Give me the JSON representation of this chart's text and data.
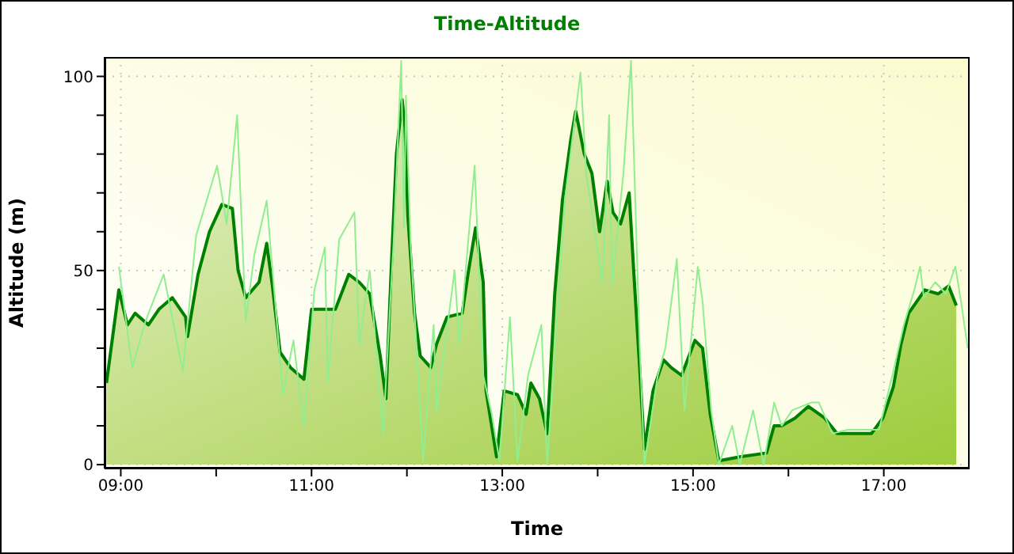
{
  "chart_data": {
    "type": "area",
    "title": "Time-Altitude",
    "xlabel": "Time",
    "ylabel": "Altitude (m)",
    "xlim": [
      8.83,
      17.9
    ],
    "ylim": [
      -1,
      105
    ],
    "xticks": [
      {
        "value": 9,
        "label": "09:00"
      },
      {
        "value": 10,
        "label": null
      },
      {
        "value": 11,
        "label": "11:00"
      },
      {
        "value": 12,
        "label": null
      },
      {
        "value": 13,
        "label": "13:00"
      },
      {
        "value": 14,
        "label": null
      },
      {
        "value": 15,
        "label": "15:00"
      },
      {
        "value": 16,
        "label": null
      },
      {
        "value": 17,
        "label": "17:00"
      }
    ],
    "yticks": [
      0,
      {
        "value": 10,
        "label": null
      },
      {
        "value": 20,
        "label": null
      },
      {
        "value": 30,
        "label": null
      },
      {
        "value": 40,
        "label": null
      },
      50,
      {
        "value": 60,
        "label": null
      },
      {
        "value": 70,
        "label": null
      },
      {
        "value": 80,
        "label": null
      },
      {
        "value": 90,
        "label": null
      },
      100
    ],
    "grid": true,
    "series": [
      {
        "color": "#008000",
        "x": [
          8.85,
          8.98,
          9.07,
          9.15,
          9.29,
          9.4,
          9.54,
          9.68,
          9.7,
          9.81,
          9.93,
          10.06,
          10.17,
          10.23,
          10.31,
          10.45,
          10.53,
          10.59,
          10.67,
          10.78,
          10.92,
          11.0,
          11.14,
          11.25,
          11.39,
          11.5,
          11.61,
          11.72,
          11.78,
          11.84,
          11.89,
          11.95,
          11.98,
          12.01,
          12.08,
          12.14,
          12.25,
          12.31,
          12.42,
          12.58,
          12.64,
          12.72,
          12.8,
          12.83,
          12.94,
          13.02,
          13.16,
          13.25,
          13.3,
          13.39,
          13.47,
          13.55,
          13.63,
          13.72,
          13.77,
          13.86,
          13.94,
          14.02,
          14.1,
          14.16,
          14.24,
          14.33,
          14.38,
          14.44,
          14.49,
          14.58,
          14.69,
          14.77,
          14.88,
          15.02,
          15.1,
          15.18,
          15.27,
          15.49,
          15.77,
          15.85,
          15.93,
          16.07,
          16.21,
          16.38,
          16.51,
          16.65,
          16.87,
          16.99,
          17.1,
          17.18,
          17.26,
          17.43,
          17.57,
          17.68,
          17.76
        ],
        "values": [
          21,
          45,
          36,
          39,
          36,
          40,
          43,
          38,
          33,
          49,
          60,
          67,
          66,
          50,
          43,
          47,
          57,
          46,
          29,
          25,
          22,
          40,
          40,
          40,
          49,
          47,
          44,
          28,
          17,
          53,
          80,
          94,
          87,
          64,
          39,
          28,
          25,
          31,
          38,
          39,
          49,
          61,
          47,
          19,
          2,
          19,
          18,
          13,
          21,
          17,
          8,
          44,
          68,
          84,
          91,
          80,
          75,
          60,
          73,
          65,
          62,
          70,
          49,
          25,
          4,
          19,
          27,
          25,
          23,
          32,
          30,
          13,
          1,
          2,
          3,
          10,
          10,
          12,
          15,
          12,
          8,
          8,
          8,
          12,
          20,
          31,
          39,
          45,
          44,
          46,
          41
        ]
      },
      {
        "type": "line",
        "color": "#90ee90",
        "x": [
          8.98,
          9.12,
          9.26,
          9.45,
          9.65,
          9.79,
          10.01,
          10.11,
          10.22,
          10.31,
          10.4,
          10.53,
          10.7,
          10.81,
          10.92,
          11.03,
          11.14,
          11.17,
          11.29,
          11.45,
          11.5,
          11.61,
          11.75,
          11.86,
          11.94,
          11.97,
          11.99,
          12.04,
          12.17,
          12.28,
          12.31,
          12.5,
          12.55,
          12.71,
          12.8,
          12.89,
          12.97,
          13.08,
          13.16,
          13.27,
          13.41,
          13.47,
          13.66,
          13.82,
          13.88,
          14.05,
          14.12,
          14.15,
          14.27,
          14.35,
          14.44,
          14.49,
          14.63,
          14.71,
          14.83,
          14.91,
          15.05,
          15.1,
          15.19,
          15.27,
          15.41,
          15.49,
          15.63,
          15.74,
          15.85,
          15.93,
          16.04,
          16.24,
          16.32,
          16.46,
          16.62,
          16.95,
          17.1,
          17.21,
          17.32,
          17.38,
          17.42,
          17.54,
          17.65,
          17.75,
          17.81,
          17.88
        ],
        "values": [
          51,
          25,
          37,
          49,
          24,
          59,
          77,
          62,
          90,
          37,
          54,
          68,
          18,
          32,
          10,
          45,
          56,
          21,
          58,
          65,
          31,
          50,
          8,
          57,
          104,
          61,
          95,
          56,
          1,
          36,
          14,
          50,
          31,
          77,
          23,
          13,
          1,
          38,
          1,
          23,
          36,
          0,
          69,
          101,
          75,
          47,
          90,
          46,
          75,
          104,
          31,
          0,
          23,
          30,
          53,
          14,
          51,
          42,
          14,
          0,
          10,
          0,
          14,
          0,
          16,
          10,
          14,
          16,
          16,
          8,
          9,
          9,
          24,
          36,
          45,
          51,
          43,
          47,
          44,
          51,
          42,
          30
        ]
      }
    ]
  }
}
